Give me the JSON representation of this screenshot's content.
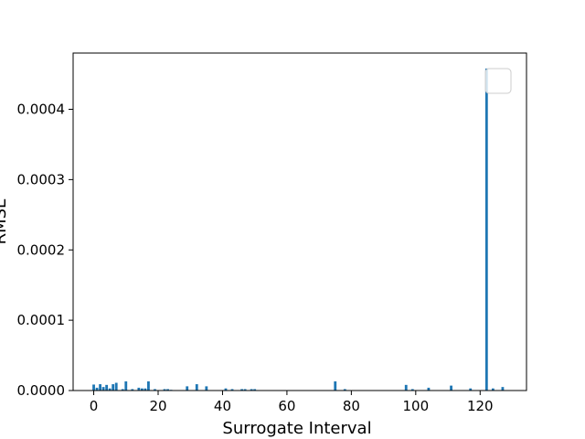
{
  "chart_data": {
    "type": "bar",
    "xlabel": "Surrogate Interval",
    "ylabel": "RMSE",
    "xlim": [
      -6.4,
      134.4
    ],
    "ylim": [
      0,
      0.00048
    ],
    "x_ticks": [
      0,
      20,
      40,
      60,
      80,
      100,
      120
    ],
    "y_ticks": [
      0.0,
      0.0001,
      0.0002,
      0.0003,
      0.0004
    ],
    "y_tick_labels": [
      "0.0000",
      "0.0001",
      "0.0002",
      "0.0003",
      "0.0004"
    ],
    "legend": {
      "placement": "top-right",
      "entries": []
    },
    "grid": false,
    "bar_color": "#1f77b4",
    "x": [
      0,
      1,
      2,
      3,
      4,
      5,
      6,
      7,
      9,
      10,
      12,
      14,
      15,
      16,
      17,
      19,
      22,
      23,
      24,
      29,
      32,
      35,
      41,
      43,
      46,
      47,
      49,
      50,
      75,
      78,
      97,
      99,
      104,
      111,
      117,
      122,
      124,
      127
    ],
    "values": [
      8.5e-06,
      4e-06,
      9e-06,
      5e-06,
      8e-06,
      3e-06,
      9e-06,
      1.1e-05,
      2e-06,
      1.3e-05,
      2e-06,
      4e-06,
      3e-06,
      3e-06,
      1.3e-05,
      2e-06,
      2e-06,
      2e-06,
      1e-06,
      6e-06,
      9e-06,
      6e-06,
      3e-06,
      2e-06,
      2e-06,
      2e-06,
      2e-06,
      2e-06,
      1.3e-05,
      2e-06,
      8e-06,
      2e-06,
      4e-06,
      7e-06,
      3e-06,
      0.000458,
      3e-06,
      5e-06
    ]
  }
}
